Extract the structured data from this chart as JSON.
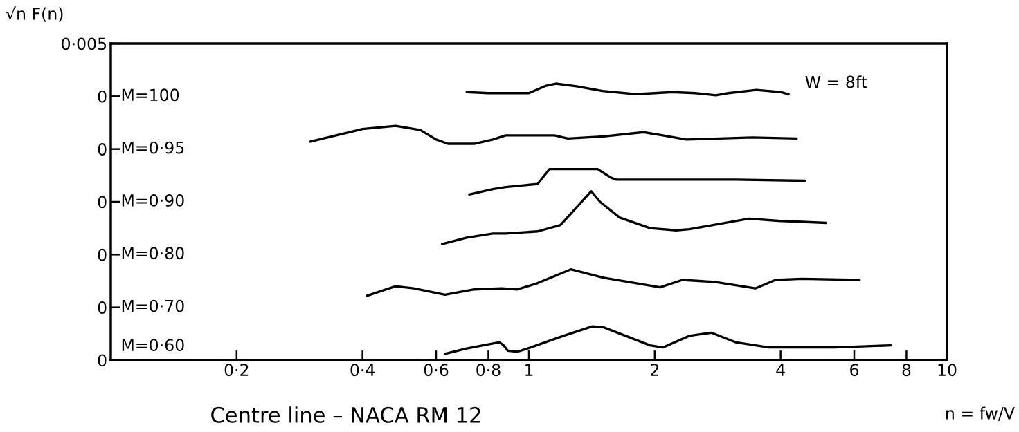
{
  "chart_data": {
    "type": "line",
    "title": "Centre line – NACA RM 12",
    "xlabel": "n = fw/V",
    "ylabel": "√n F(n)",
    "annotations": [
      "W = 8ft",
      "M=100",
      "M=0·95",
      "M=0·90",
      "M=0·80",
      "M=0·70",
      "M=0·60"
    ],
    "log": "x",
    "grid": false,
    "legend": false,
    "marker": "none",
    "line_style": "solid",
    "xlim": [
      0.1,
      10
    ],
    "xticks": [
      {
        "value": 0.2,
        "label": "0·2"
      },
      {
        "value": 0.4,
        "label": "0·4"
      },
      {
        "value": 0.6,
        "label": "0·6"
      },
      {
        "value": 0.8,
        "label": "0·8"
      },
      1,
      2,
      4,
      6,
      8,
      10
    ],
    "ylim": [
      0,
      0.03
    ],
    "yticks": [
      {
        "value": 0,
        "label": "0"
      },
      {
        "value": 0.005,
        "label": "0"
      },
      {
        "value": 0.01,
        "label": "0"
      },
      {
        "value": 0.015,
        "label": "0"
      },
      {
        "value": 0.02,
        "label": "0"
      },
      {
        "value": 0.025,
        "label": "0"
      },
      {
        "value": 0.03,
        "label": "0·005"
      }
    ],
    "series": [
      {
        "color": "#000000",
        "x": [
          0.71,
          0.8,
          0.9,
          1.0,
          1.1,
          1.16,
          1.3,
          1.5,
          1.8,
          2.0,
          2.2,
          2.5,
          2.8,
          3.0,
          3.5,
          4.0,
          4.18
        ],
        "values": [
          0.0254,
          0.0253,
          0.0253,
          0.0253,
          0.026,
          0.0262,
          0.02595,
          0.0255,
          0.0252,
          0.0253,
          0.0254,
          0.0253,
          0.0251,
          0.0253,
          0.0256,
          0.0254,
          0.0252
        ]
      },
      {
        "color": "#000000",
        "x": [
          0.3,
          0.4,
          0.48,
          0.55,
          0.6,
          0.64,
          0.74,
          0.82,
          0.88,
          1.15,
          1.24,
          1.51,
          1.88,
          2.09,
          2.38,
          3.42,
          4.37
        ],
        "values": [
          0.0207,
          0.0219,
          0.0222,
          0.0218,
          0.0209,
          0.0205,
          0.0205,
          0.0209,
          0.0213,
          0.0213,
          0.021,
          0.0212,
          0.0216,
          0.0213,
          0.0209,
          0.0211,
          0.021
        ]
      },
      {
        "color": "#000000",
        "x": [
          0.72,
          0.82,
          0.88,
          1.05,
          1.12,
          1.46,
          1.57,
          1.62,
          2.17,
          3.12,
          4.57
        ],
        "values": [
          0.0157,
          0.0162,
          0.0164,
          0.0167,
          0.0181,
          0.0181,
          0.0173,
          0.0171,
          0.0171,
          0.0171,
          0.017
        ]
      },
      {
        "color": "#000000",
        "x": [
          0.62,
          0.71,
          0.82,
          0.88,
          1.05,
          1.19,
          1.41,
          1.48,
          1.65,
          1.95,
          2.25,
          2.42,
          3.36,
          3.95,
          5.14
        ],
        "values": [
          0.011,
          0.0116,
          0.012,
          0.012,
          0.0122,
          0.0128,
          0.016,
          0.015,
          0.0135,
          0.0125,
          0.0123,
          0.0124,
          0.0134,
          0.0132,
          0.013
        ]
      },
      {
        "color": "#000000",
        "x": [
          0.41,
          0.48,
          0.53,
          0.63,
          0.74,
          0.86,
          0.94,
          1.05,
          1.26,
          1.51,
          2.06,
          2.33,
          2.8,
          3.48,
          3.89,
          4.49,
          6.18
        ],
        "values": [
          0.0061,
          0.007,
          0.0068,
          0.0062,
          0.0067,
          0.0068,
          0.0067,
          0.0073,
          0.0086,
          0.0078,
          0.0069,
          0.0076,
          0.0074,
          0.0068,
          0.0076,
          0.0077,
          0.0076
        ]
      },
      {
        "color": "#000000",
        "x": [
          0.63,
          0.71,
          0.85,
          0.87,
          0.89,
          0.94,
          1.01,
          1.21,
          1.42,
          1.51,
          1.95,
          2.09,
          2.42,
          2.73,
          3.12,
          3.75,
          5.39,
          7.34
        ],
        "values": [
          0.0006,
          0.0011,
          0.0017,
          0.0014,
          0.0009,
          0.0008,
          0.0012,
          0.0023,
          0.0032,
          0.0031,
          0.0014,
          0.0012,
          0.0023,
          0.0026,
          0.0017,
          0.0012,
          0.0012,
          0.0014
        ]
      }
    ]
  }
}
